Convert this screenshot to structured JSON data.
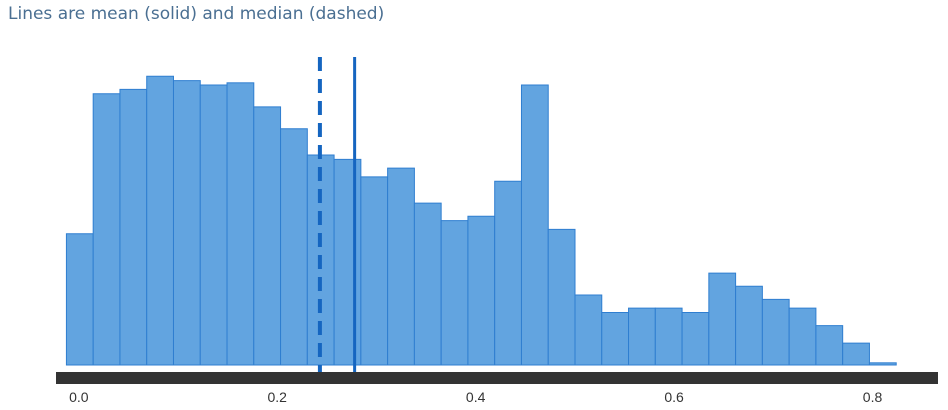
{
  "chart_data": {
    "type": "bar",
    "subtitle": "Lines are mean (solid) and median (dashed)",
    "bin_start": -0.0125,
    "bin_width": 0.02698,
    "values": [
      0.3,
      0.62,
      0.63,
      0.66,
      0.65,
      0.64,
      0.645,
      0.59,
      0.54,
      0.48,
      0.47,
      0.43,
      0.45,
      0.37,
      0.33,
      0.34,
      0.42,
      0.64,
      0.31,
      0.16,
      0.12,
      0.13,
      0.13,
      0.12,
      0.21,
      0.18,
      0.15,
      0.13,
      0.09,
      0.05,
      0.005
    ],
    "ylim": [
      0,
      0.72
    ],
    "xlim": [
      -0.023,
      0.866
    ],
    "x_ticks": [
      "0.0",
      "0.2",
      "0.4",
      "0.6",
      "0.8"
    ],
    "x_tick_values": [
      0.0,
      0.2,
      0.4,
      0.6,
      0.8
    ],
    "mean": 0.278,
    "median": 0.243,
    "bar_color": "#62a4e0",
    "bar_edge_color": "#2f7ed0",
    "line_color": "#1565c0",
    "axis_color": "#333333"
  }
}
